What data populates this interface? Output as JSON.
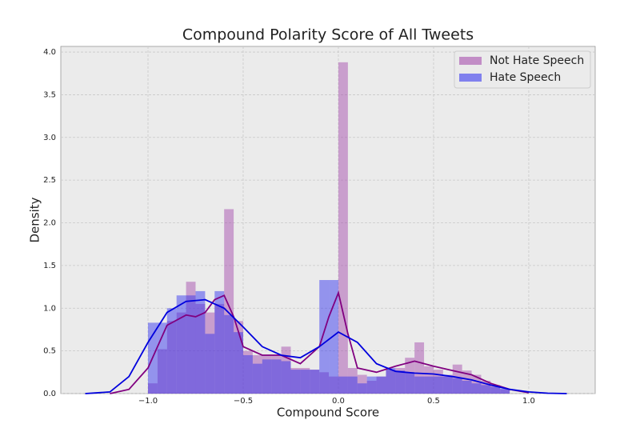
{
  "chart_data": {
    "type": "histogram",
    "title": "Compound Polarity Score of All Tweets",
    "x_label": "Compound Score",
    "y_label": "Density",
    "xlim": [
      -1.458,
      1.349
    ],
    "ylim": [
      0,
      4.066
    ],
    "xticks": [
      {
        "value": -1.0,
        "label": "−1.0"
      },
      {
        "value": -0.5,
        "label": "−0.5"
      },
      {
        "value": 0.0,
        "label": "0.0"
      },
      {
        "value": 0.5,
        "label": "0.5"
      },
      {
        "value": 1.0,
        "label": "1.0"
      }
    ],
    "yticks": [
      {
        "value": 0,
        "label": "0.0"
      },
      {
        "value": 0.5,
        "label": "0.5"
      },
      {
        "value": 1.0,
        "label": "1.0"
      },
      {
        "value": 1.5,
        "label": "1.5"
      },
      {
        "value": 2.0,
        "label": "2.0"
      },
      {
        "value": 2.5,
        "label": "2.5"
      },
      {
        "value": 3.0,
        "label": "3.0"
      },
      {
        "value": 3.5,
        "label": "3.5"
      },
      {
        "value": 4.0,
        "label": "4.0"
      }
    ],
    "grid": true,
    "legend": "upper-right",
    "series": [
      {
        "name": "Not Hate Speech",
        "color": "#a040a8",
        "line_color": "#800080",
        "bins": [
          -1.0,
          -0.95,
          -0.9,
          -0.85,
          -0.8,
          -0.75,
          -0.7,
          -0.65,
          -0.6,
          -0.55,
          -0.5,
          -0.45,
          -0.4,
          -0.35,
          -0.3,
          -0.25,
          -0.2,
          -0.15,
          -0.1,
          -0.05,
          0.0,
          0.05,
          0.1,
          0.15,
          0.2,
          0.25,
          0.3,
          0.35,
          0.4,
          0.45,
          0.5,
          0.55,
          0.6,
          0.65,
          0.7,
          0.75,
          0.8,
          0.85,
          0.9
        ],
        "values": [
          0.12,
          0.52,
          0.85,
          0.95,
          1.31,
          1.05,
          0.95,
          1.05,
          2.16,
          0.85,
          0.5,
          0.45,
          0.45,
          0.45,
          0.55,
          0.3,
          0.3,
          0.28,
          0.25,
          0.2,
          3.88,
          0.3,
          0.22,
          0.15,
          0.2,
          0.28,
          0.3,
          0.42,
          0.6,
          0.32,
          0.28,
          0.22,
          0.34,
          0.27,
          0.22,
          0.15,
          0.1,
          0.05
        ],
        "kde": {
          "x": [
            -1.2,
            -1.1,
            -1.0,
            -0.9,
            -0.8,
            -0.75,
            -0.7,
            -0.65,
            -0.6,
            -0.55,
            -0.5,
            -0.4,
            -0.3,
            -0.2,
            -0.1,
            -0.05,
            0,
            0.05,
            0.1,
            0.2,
            0.3,
            0.4,
            0.5,
            0.6,
            0.7,
            0.8,
            0.9,
            1.0
          ],
          "y": [
            0,
            0.05,
            0.3,
            0.8,
            0.92,
            0.9,
            0.95,
            1.1,
            1.15,
            0.9,
            0.55,
            0.45,
            0.45,
            0.35,
            0.55,
            0.9,
            1.18,
            0.7,
            0.3,
            0.25,
            0.32,
            0.38,
            0.32,
            0.27,
            0.22,
            0.12,
            0.05,
            0.01
          ]
        }
      },
      {
        "name": "Hate Speech",
        "color": "#2828f0",
        "line_color": "#0000dd",
        "bins": [
          -1.0,
          -0.95,
          -0.9,
          -0.85,
          -0.8,
          -0.75,
          -0.7,
          -0.65,
          -0.6,
          -0.55,
          -0.5,
          -0.45,
          -0.4,
          -0.35,
          -0.3,
          -0.25,
          -0.2,
          -0.15,
          -0.1,
          -0.05,
          0.0,
          0.05,
          0.1,
          0.15,
          0.2,
          0.25,
          0.3,
          0.35,
          0.4,
          0.45,
          0.5,
          0.55,
          0.6,
          0.65,
          0.7,
          0.75,
          0.8,
          0.85,
          0.9
        ],
        "values": [
          0.83,
          0.83,
          1.0,
          1.15,
          1.15,
          1.2,
          0.7,
          1.2,
          0.92,
          0.72,
          0.45,
          0.35,
          0.4,
          0.4,
          0.38,
          0.28,
          0.28,
          0.28,
          1.33,
          1.33,
          0.2,
          0.2,
          0.12,
          0.2,
          0.2,
          0.3,
          0.27,
          0.25,
          0.2,
          0.2,
          0.2,
          0.2,
          0.18,
          0.15,
          0.12,
          0.1,
          0.08,
          0.06
        ],
        "kde": {
          "x": [
            -1.33,
            -1.2,
            -1.1,
            -1.0,
            -0.9,
            -0.8,
            -0.7,
            -0.6,
            -0.5,
            -0.4,
            -0.3,
            -0.2,
            -0.1,
            0,
            0.1,
            0.2,
            0.3,
            0.4,
            0.5,
            0.6,
            0.7,
            0.8,
            0.9,
            1.0,
            1.1,
            1.2
          ],
          "y": [
            0,
            0.02,
            0.2,
            0.6,
            0.95,
            1.08,
            1.1,
            1.0,
            0.78,
            0.55,
            0.45,
            0.42,
            0.55,
            0.72,
            0.6,
            0.35,
            0.26,
            0.24,
            0.23,
            0.2,
            0.16,
            0.1,
            0.05,
            0.02,
            0.005,
            0
          ]
        }
      }
    ]
  }
}
